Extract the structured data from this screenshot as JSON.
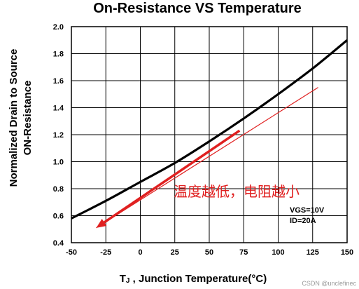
{
  "chart_data": {
    "type": "line",
    "title": "On-Resistance VS Temperature",
    "xlabel_prefix": "T",
    "xlabel_sub": "J",
    "xlabel_rest": " , Junction Temperature(°C)",
    "ylabel_line1": "Normalized Drain to Source",
    "ylabel_line2": "ON-Resistance",
    "xlim": [
      -50,
      150
    ],
    "ylim": [
      0.4,
      2.0
    ],
    "x_ticks": [
      -50,
      -25,
      0,
      25,
      50,
      75,
      100,
      125,
      150
    ],
    "x_tick_labels": [
      "-50",
      "-25",
      "0",
      "25",
      "50",
      "75",
      "100",
      "125",
      "150"
    ],
    "y_ticks": [
      0.4,
      0.6,
      0.8,
      1.0,
      1.2,
      1.4,
      1.6,
      1.8,
      2.0
    ],
    "y_tick_labels": [
      "0.4",
      "0.6",
      "0.8",
      "1.0",
      "1.2",
      "1.4",
      "1.6",
      "1.8",
      "2.0"
    ],
    "grid": true,
    "series": [
      {
        "color": "#000000",
        "x": [
          -50,
          -25,
          0,
          25,
          50,
          75,
          100,
          125,
          150
        ],
        "y": [
          0.58,
          0.71,
          0.85,
          0.99,
          1.15,
          1.32,
          1.5,
          1.69,
          1.9
        ]
      }
    ],
    "conditions": [
      "VGS=10V",
      "ID=20A"
    ],
    "annotation": {
      "text": "温度越低，电阻越小",
      "color": "#e02020",
      "line_from": [
        129,
        1.55
      ],
      "line_to": [
        -32,
        0.51
      ],
      "arrow_from": [
        72,
        1.23
      ],
      "arrow_to": [
        -32,
        0.51
      ]
    }
  },
  "watermark": "CSDN @unclefinec"
}
